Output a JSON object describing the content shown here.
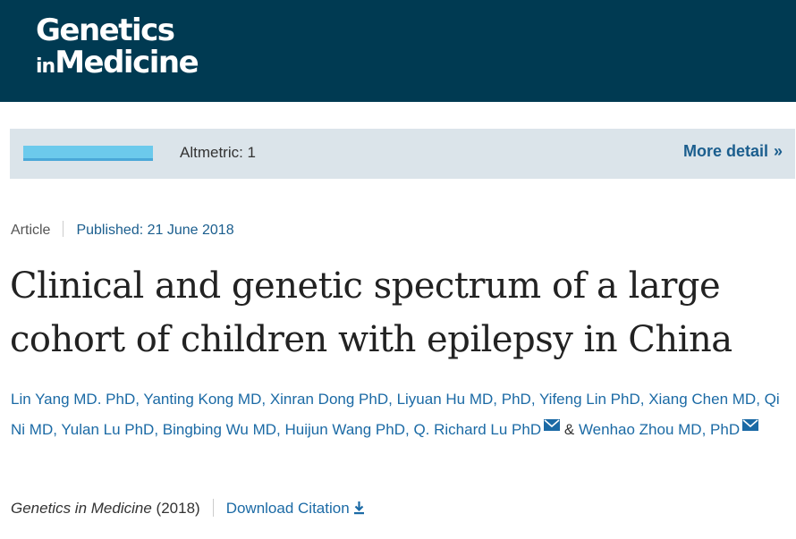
{
  "header": {
    "logo_line1": "Genetics",
    "logo_line2_small": "in",
    "logo_line2_large": "Medicine",
    "bg_color": "#003a52"
  },
  "altmetric": {
    "label": "Altmetric: 1",
    "more_detail": "More detail",
    "chevron": "»"
  },
  "article_meta": {
    "type": "Article",
    "published": "Published: 21 June 2018"
  },
  "title_lines": [
    "Clinical and genetic spectrum of a large",
    "cohort of children with epilepsy in China"
  ],
  "authors": [
    {
      "name": "Lin Yang MD. PhD",
      "mail": false
    },
    {
      "name": "Yanting Kong MD",
      "mail": false
    },
    {
      "name": "Xinran Dong PhD",
      "mail": false
    },
    {
      "name": "Liyuan Hu MD, PhD",
      "mail": false
    },
    {
      "name": "Yifeng Lin PhD",
      "mail": false
    },
    {
      "name": "Xiang Chen MD",
      "mail": false
    },
    {
      "name": "Qi Ni MD",
      "mail": false
    },
    {
      "name": "Yulan Lu PhD",
      "mail": false
    },
    {
      "name": "Bingbing Wu MD",
      "mail": false
    },
    {
      "name": "Huijun Wang PhD",
      "mail": false
    },
    {
      "name": "Q. Richard Lu PhD",
      "mail": true
    },
    {
      "name": "Wenhao Zhou MD, PhD",
      "mail": true
    }
  ],
  "authors_separator": ", ",
  "authors_amp": "&",
  "citation": {
    "journal": "Genetics in Medicine",
    "year": "(2018)",
    "download": "Download Citation"
  },
  "icons": {
    "mail": "envelope-icon",
    "download": "download-arrow-icon",
    "chevron": "double-chevron-right-icon"
  },
  "colors": {
    "link": "#1b6aa5",
    "altmetric_bar": "#6ccaec",
    "altmetric_bg": "#dbe4ea"
  }
}
